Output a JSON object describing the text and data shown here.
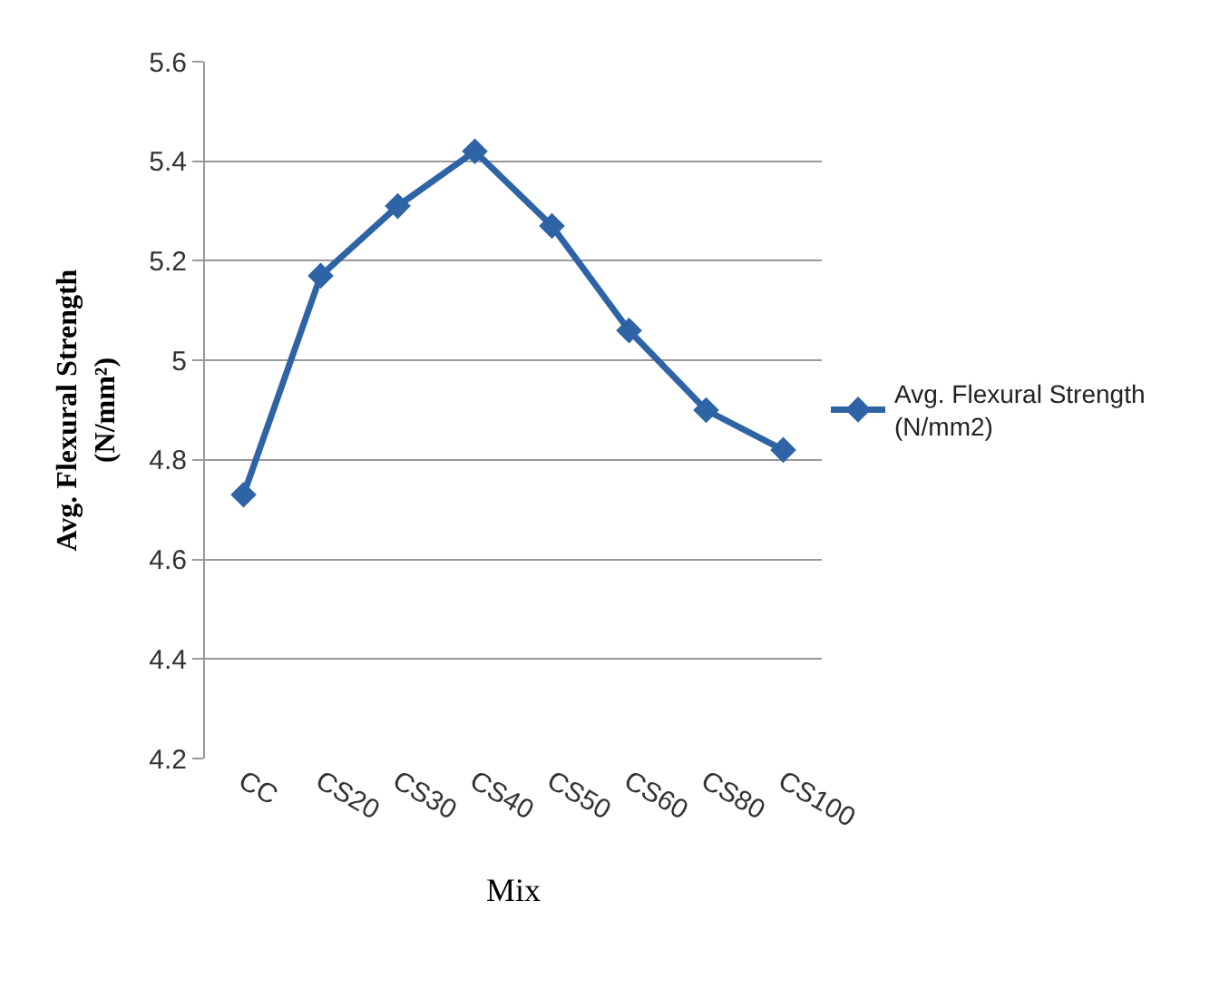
{
  "chart_data": {
    "type": "line",
    "xlabel": "Mix",
    "ylabel": "Avg. Flexural Strength (N/mm²)",
    "categories": [
      "CC",
      "CS20",
      "CS30",
      "CS40",
      "CS50",
      "CS60",
      "CS80",
      "CS100"
    ],
    "series": [
      {
        "name": "Avg. Flexural Strength (N/mm2)",
        "color": "#2e64a6",
        "values": [
          4.73,
          5.17,
          5.31,
          5.42,
          5.27,
          5.06,
          4.9,
          4.82
        ]
      }
    ],
    "ylim": [
      4.2,
      5.6
    ],
    "yticks": [
      {
        "value": 4.2,
        "label": "4.2"
      },
      {
        "value": 4.4,
        "label": "4.4"
      },
      {
        "value": 4.6,
        "label": "4.6"
      },
      {
        "value": 4.8,
        "label": "4.8"
      },
      {
        "value": 5.0,
        "label": "5"
      },
      {
        "value": 5.2,
        "label": "5.2"
      },
      {
        "value": 5.4,
        "label": "5.4"
      },
      {
        "value": 5.6,
        "label": "5.6"
      }
    ],
    "grid": "y",
    "legend": "right",
    "marker": "diamond",
    "line_style": "solid"
  }
}
